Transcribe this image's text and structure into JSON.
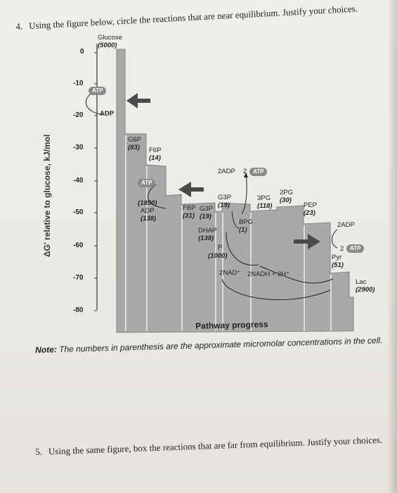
{
  "question4": {
    "number": "4.",
    "text": "Using the figure below, circle the reactions that are near equilibrium. Justify your choices."
  },
  "question5": {
    "number": "5.",
    "text": "Using the same figure, box the reactions that are far from equilibrium. Justify your choices."
  },
  "figure": {
    "y_axis_label": "ΔG' relative to glucose, kJ/mol",
    "x_axis_label": "Pathway progress",
    "ticks": [
      "0",
      "-10",
      "-20",
      "-30",
      "-40",
      "-50",
      "-60",
      "-70",
      "-80"
    ],
    "glucose": {
      "name": "Glucose",
      "conc": "(5000)"
    },
    "g6p": {
      "name": "G6P",
      "conc": "(83)"
    },
    "f6p": {
      "name": "F6P",
      "conc": "(14)"
    },
    "atp_conc": "(1850)",
    "adp": {
      "name": "ADP",
      "conc": "(138)"
    },
    "fbp": {
      "name": "FBP",
      "conc": "(31)"
    },
    "g3p_a": {
      "name": "G3P",
      "conc": "(19)"
    },
    "g3p_b": {
      "name": "G3P",
      "conc": "(19)"
    },
    "dhap": {
      "name": "DHAP",
      "conc": "(138)"
    },
    "pi": {
      "name": "P",
      "conc": "(1000)"
    },
    "bpg": {
      "name": "BPG",
      "conc": "(1)"
    },
    "pg3": {
      "name": "3PG",
      "conc": "(118)"
    },
    "pg2": {
      "name": "2PG",
      "conc": "(30)"
    },
    "pep": {
      "name": "PEP",
      "conc": "(23)"
    },
    "pyr": {
      "name": "Pyr",
      "conc": "(51)"
    },
    "lac": {
      "name": "Lac",
      "conc": "(2900)"
    },
    "adp_top": "ADP",
    "adp2_label": "2ADP",
    "adp2_right": "2ADP",
    "two_left": "2",
    "two_right": "2",
    "nad": "2NAD⁺",
    "nadh": "2NADH + 2H⁺",
    "atp_badge": "ATP"
  },
  "note": {
    "label": "Note:",
    "text": "The numbers in parenthesis are the approximate micromolar concentrations in the cell."
  }
}
